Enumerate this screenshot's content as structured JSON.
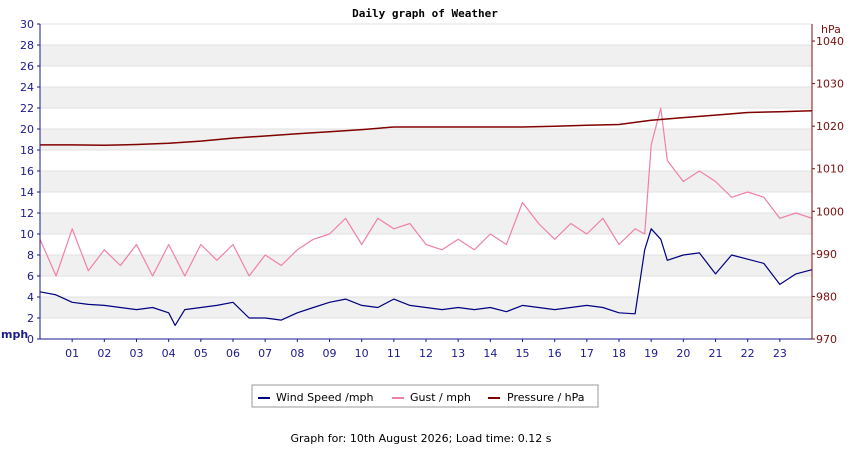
{
  "chart_data": {
    "type": "line",
    "title": "Daily graph of Weather",
    "left_axis": {
      "unit": "mph",
      "ylim": [
        0,
        30
      ],
      "ticks": [
        "0",
        "2",
        "4",
        "6",
        "8",
        "10",
        "12",
        "14",
        "16",
        "18",
        "20",
        "22",
        "24",
        "26",
        "28",
        "30"
      ]
    },
    "right_axis": {
      "unit": "hPa",
      "ylim": [
        970,
        1044
      ],
      "ticks": [
        "970",
        "980",
        "990",
        "1000",
        "1010",
        "1020",
        "1030",
        "1040"
      ]
    },
    "x_axis": {
      "xlim": [
        0,
        24
      ],
      "ticks": [
        "01",
        "02",
        "03",
        "04",
        "05",
        "06",
        "07",
        "08",
        "09",
        "10",
        "11",
        "12",
        "13",
        "14",
        "15",
        "16",
        "17",
        "18",
        "19",
        "20",
        "21",
        "22",
        "23"
      ]
    },
    "grid": "horizontal-bands",
    "legend_position": "bottom-center",
    "series": [
      {
        "name": "Wind Speed /mph",
        "color": "#000080",
        "axis": "left",
        "x": [
          0,
          0.5,
          1,
          1.5,
          2,
          2.5,
          3,
          3.5,
          4,
          4.2,
          4.5,
          5,
          5.5,
          6,
          6.5,
          7,
          7.5,
          8,
          8.5,
          9,
          9.5,
          10,
          10.5,
          11,
          11.5,
          12,
          12.5,
          13,
          13.5,
          14,
          14.5,
          15,
          15.5,
          16,
          16.5,
          17,
          17.5,
          18,
          18.5,
          18.8,
          19,
          19.3,
          19.5,
          20,
          20.5,
          21,
          21.5,
          22,
          22.5,
          23,
          23.5,
          24
        ],
        "y": [
          4.5,
          4.2,
          3.5,
          3.3,
          3.2,
          3.0,
          2.8,
          3.0,
          2.5,
          1.3,
          2.8,
          3.0,
          3.2,
          3.5,
          2.0,
          2.0,
          1.8,
          2.5,
          3.0,
          3.5,
          3.8,
          3.2,
          3.0,
          3.8,
          3.2,
          3.0,
          2.8,
          3.0,
          2.8,
          3.0,
          2.6,
          3.2,
          3.0,
          2.8,
          3.0,
          3.2,
          3.0,
          2.5,
          2.4,
          8.5,
          10.5,
          9.5,
          7.5,
          8.0,
          8.2,
          6.2,
          8.0,
          7.6,
          7.2,
          5.2,
          6.2,
          6.6
        ]
      },
      {
        "name": "Gust / mph",
        "color": "#f080a8",
        "axis": "left",
        "x": [
          0,
          0.5,
          1,
          1.5,
          2,
          2.5,
          3,
          3.5,
          4,
          4.5,
          5,
          5.5,
          6,
          6.5,
          7,
          7.5,
          8,
          8.5,
          9,
          9.5,
          10,
          10.5,
          11,
          11.5,
          12,
          12.5,
          13,
          13.5,
          14,
          14.5,
          15,
          15.5,
          16,
          16.5,
          17,
          17.5,
          18,
          18.5,
          18.8,
          19,
          19.3,
          19.5,
          20,
          20.5,
          21,
          21.5,
          22,
          22.5,
          23,
          23.5,
          24
        ],
        "y": [
          9.5,
          6.0,
          10.5,
          6.5,
          8.5,
          7.0,
          9.0,
          6.0,
          9.0,
          6.0,
          9.0,
          7.5,
          9.0,
          6.0,
          8.0,
          7.0,
          8.5,
          9.5,
          10.0,
          11.5,
          9.0,
          11.5,
          10.5,
          11.0,
          9.0,
          8.5,
          9.5,
          8.5,
          10.0,
          9.0,
          13.0,
          11.0,
          9.5,
          11.0,
          10.0,
          11.5,
          9.0,
          10.5,
          10.0,
          18.5,
          22.0,
          17.0,
          15.0,
          16.0,
          15.0,
          13.5,
          14.0,
          13.5,
          11.5,
          12.0,
          11.5
        ]
      },
      {
        "name": "Pressure / hPa",
        "color": "#800000",
        "axis": "right",
        "x": [
          0,
          1,
          2,
          3,
          4,
          5,
          6,
          7,
          8,
          9,
          10,
          11,
          12,
          13,
          14,
          15,
          16,
          17,
          18,
          19,
          20,
          21,
          22,
          23,
          24
        ],
        "y": [
          1015.6,
          1015.6,
          1015.5,
          1015.7,
          1016.0,
          1016.5,
          1017.2,
          1017.7,
          1018.2,
          1018.7,
          1019.2,
          1019.8,
          1019.8,
          1019.8,
          1019.8,
          1019.8,
          1020.0,
          1020.2,
          1020.4,
          1021.4,
          1022.0,
          1022.6,
          1023.2,
          1023.4,
          1023.6
        ]
      }
    ]
  },
  "footer": {
    "text": "Graph for: 10th August 2026; Load time: 0.12 s"
  }
}
